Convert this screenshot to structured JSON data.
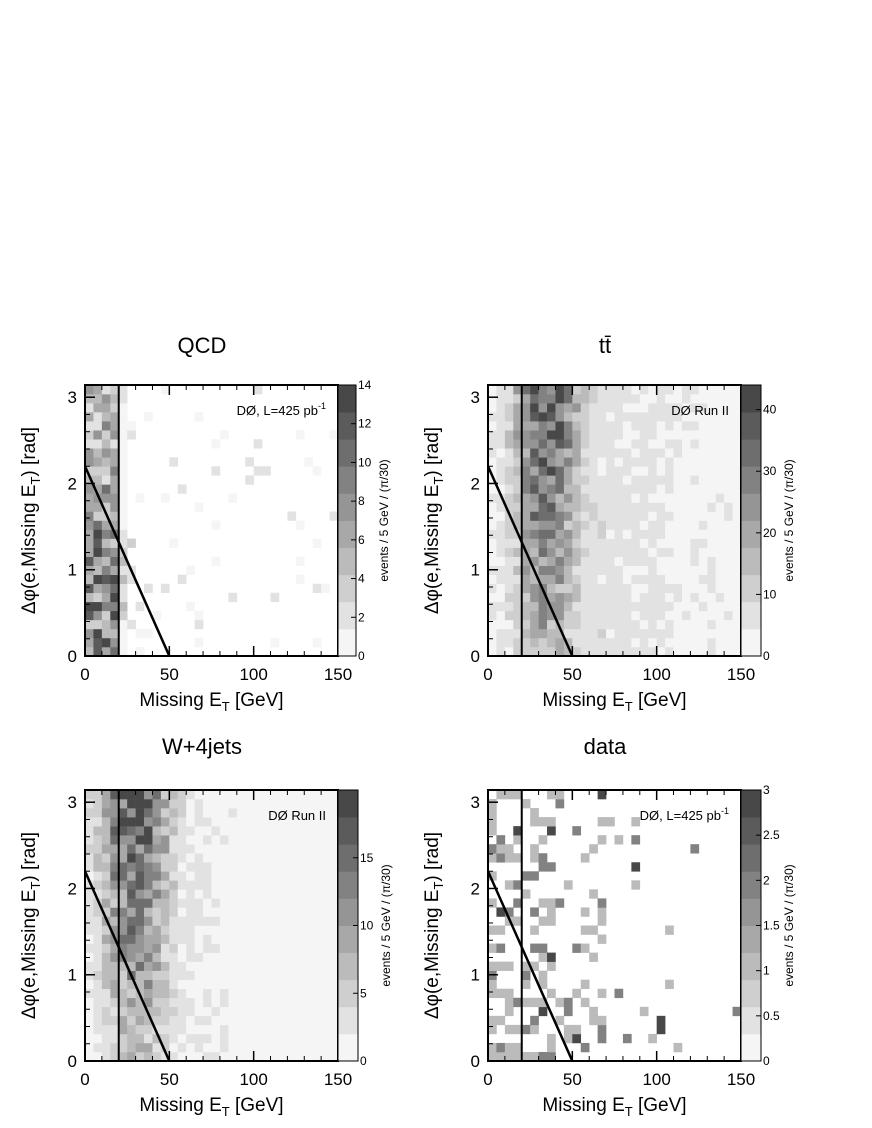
{
  "chart_data": [
    {
      "type": "heatmap",
      "title": "QCD",
      "title_html": "QCD",
      "xlabel": "Missing E",
      "xlabel_sub": "T",
      "xlabel_unit": " [GeV]",
      "ylabel": "Δφ(e,Missing E",
      "ylabel_sub": "T",
      "ylabel_tail": ") [rad]",
      "annotation": "DØ, L=425 pb",
      "annotation_sup": "-1",
      "colorbar_label": "events / 5 GeV / (π/30)",
      "xlim": [
        0,
        150
      ],
      "ylim": [
        0,
        3.1416
      ],
      "x_ticks": [
        "0",
        "50",
        "100",
        "150"
      ],
      "y_ticks": [
        "0",
        "1",
        "2",
        "3"
      ],
      "colorbar_max": 14,
      "colorbar_ticks": [
        "0",
        "2",
        "4",
        "6",
        "8",
        "10",
        "12",
        "14"
      ],
      "colorbar_tick_values": [
        0,
        2,
        4,
        6,
        8,
        10,
        12,
        14
      ],
      "profile": "qcd",
      "cut_vertical_x": 20,
      "cut_diagonal": [
        [
          0,
          2.2
        ],
        [
          50,
          0
        ]
      ]
    },
    {
      "type": "heatmap",
      "title": "tt̄",
      "xlabel": "Missing E",
      "xlabel_sub": "T",
      "xlabel_unit": " [GeV]",
      "ylabel": "Δφ(e,Missing E",
      "ylabel_sub": "T",
      "ylabel_tail": ") [rad]",
      "annotation": "DØ Run II",
      "annotation_sup": "",
      "colorbar_label": "events / 5 GeV / (π/30)",
      "xlim": [
        0,
        150
      ],
      "ylim": [
        0,
        3.1416
      ],
      "x_ticks": [
        "0",
        "50",
        "100",
        "150"
      ],
      "y_ticks": [
        "0",
        "1",
        "2",
        "3"
      ],
      "colorbar_max": 44,
      "colorbar_ticks": [
        "0",
        "10",
        "20",
        "30",
        "40"
      ],
      "colorbar_tick_values": [
        0,
        10,
        20,
        30,
        40
      ],
      "profile": "ttbar",
      "cut_vertical_x": 20,
      "cut_diagonal": [
        [
          0,
          2.2
        ],
        [
          50,
          0
        ]
      ]
    },
    {
      "type": "heatmap",
      "title": "W+4jets",
      "xlabel": "Missing E",
      "xlabel_sub": "T",
      "xlabel_unit": " [GeV]",
      "ylabel": "Δφ(e,Missing E",
      "ylabel_sub": "T",
      "ylabel_tail": ") [rad]",
      "annotation": "DØ Run II",
      "annotation_sup": "",
      "colorbar_label": "events / 5 GeV / (π/30)",
      "xlim": [
        0,
        150
      ],
      "ylim": [
        0,
        3.1416
      ],
      "x_ticks": [
        "0",
        "50",
        "100",
        "150"
      ],
      "y_ticks": [
        "0",
        "1",
        "2",
        "3"
      ],
      "colorbar_max": 20,
      "colorbar_ticks": [
        "0",
        "5",
        "10",
        "15"
      ],
      "colorbar_tick_values": [
        0,
        5,
        10,
        15
      ],
      "profile": "wjets",
      "cut_vertical_x": 20,
      "cut_diagonal": [
        [
          0,
          2.2
        ],
        [
          50,
          0
        ]
      ]
    },
    {
      "type": "heatmap",
      "title": "data",
      "xlabel": "Missing E",
      "xlabel_sub": "T",
      "xlabel_unit": " [GeV]",
      "ylabel": "Δφ(e,Missing E",
      "ylabel_sub": "T",
      "ylabel_tail": ") [rad]",
      "annotation": "DØ, L=425 pb",
      "annotation_sup": "-1",
      "colorbar_label": "events / 5 GeV / (π/30)",
      "xlim": [
        0,
        150
      ],
      "ylim": [
        0,
        3.1416
      ],
      "x_ticks": [
        "0",
        "50",
        "100",
        "150"
      ],
      "y_ticks": [
        "0",
        "1",
        "2",
        "3"
      ],
      "colorbar_max": 3,
      "colorbar_ticks": [
        "0",
        "0.5",
        "1",
        "1.5",
        "2",
        "2.5",
        "3"
      ],
      "colorbar_tick_values": [
        0,
        0.5,
        1,
        1.5,
        2,
        2.5,
        3
      ],
      "profile": "data",
      "cut_vertical_x": 20,
      "cut_diagonal": [
        [
          0,
          2.2
        ],
        [
          50,
          0
        ]
      ]
    }
  ]
}
